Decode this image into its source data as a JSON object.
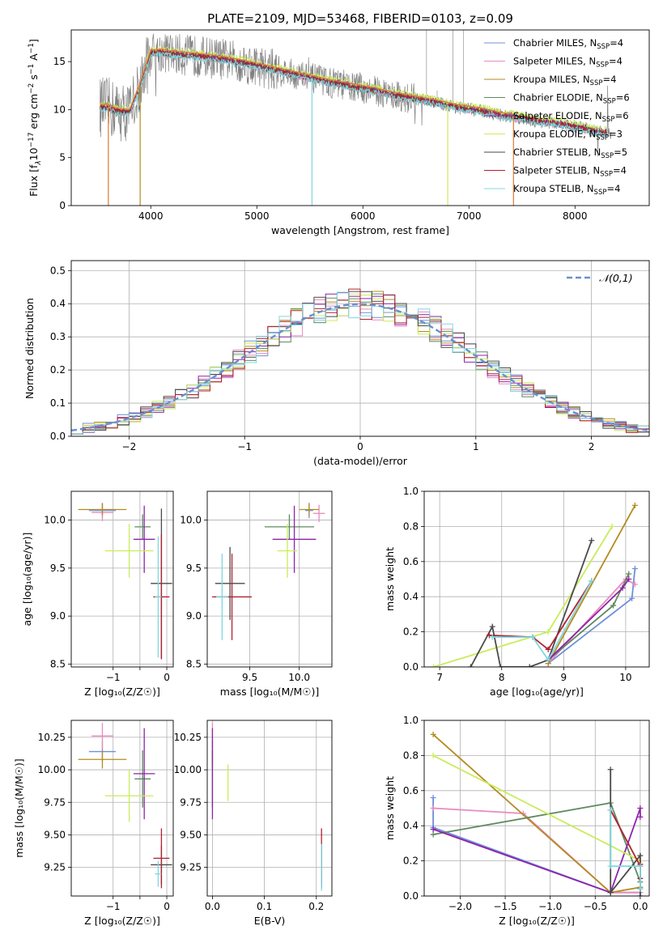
{
  "figure": {
    "title": "PLATE=2109, MJD=53468, FIBERID=0103, z=0.09"
  },
  "colors": {
    "Chabrier MILES": "#6f8fd8",
    "Salpeter MILES": "#e88ac0",
    "Kroupa MILES": "#b58b1f",
    "Chabrier ELODIE": "#5f8a5f",
    "Salpeter ELODIE": "#8e24aa",
    "Kroupa ELODIE": "#c9ec5a",
    "Chabrier STELIB": "#4a4a4a",
    "Salpeter STELIB": "#b22030",
    "Kroupa STELIB": "#7fd8e0",
    "data": "#808080",
    "orange": "#e07830",
    "normal": "#6a8fd0"
  },
  "chart_data": [
    {
      "id": "spectrum",
      "type": "line",
      "title": "PLATE=2109, MJD=53468, FIBERID=0103, z=0.09",
      "xlabel": "wavelength [Angstrom, rest frame]",
      "ylabel_parts": [
        "Flux [f",
        "λ",
        "10",
        "−17",
        " erg cm",
        "−2",
        " s",
        "−1",
        " A",
        "−1",
        "]"
      ],
      "xlim": [
        3250,
        8700
      ],
      "ylim": [
        0,
        18.3
      ],
      "xticks": [
        4000,
        5000,
        6000,
        7000,
        8000
      ],
      "yticks": [
        0,
        5,
        10,
        15
      ],
      "grid": false,
      "legend_position": "upper-right",
      "legend": [
        {
          "base": "Chabrier MILES, N",
          "sub": "SSP",
          "tail": "=4",
          "color": "#6f8fd8"
        },
        {
          "base": "Salpeter MILES, N",
          "sub": "SSP",
          "tail": "=4",
          "color": "#e88ac0"
        },
        {
          "base": "Kroupa MILES, N",
          "sub": "SSP",
          "tail": "=4",
          "color": "#b58b1f"
        },
        {
          "base": "Chabrier ELODIE, N",
          "sub": "SSP",
          "tail": "=6",
          "color": "#5f8a5f"
        },
        {
          "base": "Salpeter ELODIE, N",
          "sub": "SSP",
          "tail": "=6",
          "color": "#8e24aa"
        },
        {
          "base": "Kroupa ELODIE, N",
          "sub": "SSP",
          "tail": "=3",
          "color": "#c9ec5a"
        },
        {
          "base": "Chabrier STELIB, N",
          "sub": "SSP",
          "tail": "=5",
          "color": "#4a4a4a"
        },
        {
          "base": "Salpeter STELIB, N",
          "sub": "SSP",
          "tail": "=4",
          "color": "#b22030"
        },
        {
          "base": "Kroupa STELIB, N",
          "sub": "SSP",
          "tail": "=4",
          "color": "#7fd8e0"
        }
      ],
      "continuum": {
        "x": [
          3500,
          3600,
          3700,
          3800,
          3900,
          4000,
          4100,
          4200,
          4300,
          4400,
          4500,
          4700,
          4900,
          5100,
          5300,
          5500,
          5700,
          5900,
          6100,
          6300,
          6500,
          6700,
          6900,
          7100,
          7300,
          7500,
          7700,
          7900,
          8100,
          8300
        ],
        "y": [
          10.3,
          10.2,
          9.8,
          9.7,
          12.5,
          15.9,
          16.0,
          15.8,
          15.7,
          15.6,
          15.5,
          15.2,
          14.8,
          14.3,
          13.8,
          13.3,
          12.8,
          12.4,
          12.0,
          11.5,
          11.1,
          10.7,
          10.2,
          9.9,
          9.4,
          9.1,
          8.7,
          8.4,
          8.0,
          7.5
        ]
      }
    },
    {
      "id": "residuals",
      "type": "histogram",
      "xlabel": "(data-model)/error",
      "ylabel": "Normed distribution",
      "xlim": [
        -2.5,
        2.5
      ],
      "ylim": [
        0,
        0.53
      ],
      "xticks": [
        -2,
        -1,
        0,
        1,
        2
      ],
      "yticks": [
        0.0,
        0.1,
        0.2,
        0.3,
        0.4,
        0.5
      ],
      "grid": true,
      "legend": [
        "𝒩(0,1)"
      ],
      "legend_position": "upper-right",
      "bin_width": 0.1
    },
    {
      "id": "age-vs-Z",
      "type": "errorbar",
      "xlabel": "Z [log₁₀(Z/Z☉)]",
      "ylabel": "age  [log₁₀(age/yr)]",
      "xlim": [
        -1.78,
        0.12
      ],
      "ylim": [
        8.47,
        10.3
      ],
      "xticks": [
        -1,
        -0.5,
        0
      ],
      "xtick_labels": [
        "−1",
        "",
        "0"
      ],
      "yticks": [
        8.5,
        9.0,
        9.5,
        10.0
      ],
      "grid": true,
      "points": [
        {
          "model": "Chabrier MILES",
          "x": -1.2,
          "xerr": 0.25,
          "y": 10.1,
          "yerr": 0.08
        },
        {
          "model": "Salpeter MILES",
          "x": -1.2,
          "xerr": 0.2,
          "y": 10.08,
          "yerr": 0.09
        },
        {
          "model": "Kroupa MILES",
          "x": -1.2,
          "xerr": 0.45,
          "y": 10.11,
          "yerr": 0.06
        },
        {
          "model": "Chabrier ELODIE",
          "x": -0.45,
          "xerr": 0.15,
          "y": 9.93,
          "yerr": 0.13
        },
        {
          "model": "Salpeter ELODIE",
          "x": -0.42,
          "xerr": 0.2,
          "y": 9.8,
          "yerr": 0.35
        },
        {
          "model": "Kroupa ELODIE",
          "x": -0.7,
          "xerr": 0.45,
          "y": 9.68,
          "yerr": 0.28
        },
        {
          "model": "Chabrier STELIB",
          "x": -0.1,
          "xerr": 0.2,
          "y": 9.34,
          "yerr": 0.78
        },
        {
          "model": "Salpeter STELIB",
          "x": -0.1,
          "xerr": 0.15,
          "y": 9.2,
          "yerr": 0.65
        },
        {
          "model": "Kroupa STELIB",
          "x": -0.16,
          "xerr": 0.06,
          "y": 9.2,
          "yerr": 0.63
        }
      ]
    },
    {
      "id": "age-vs-mass",
      "type": "errorbar",
      "xlabel": "mass [log₁₀(M/M☉)]",
      "ylabel": "",
      "xlim": [
        9.07,
        10.33
      ],
      "ylim": [
        8.47,
        10.3
      ],
      "xticks": [
        9.5,
        10.0
      ],
      "yticks": [
        8.5,
        9.0,
        9.5,
        10.0
      ],
      "grid": true,
      "points": [
        {
          "model": "Chabrier MILES",
          "x": 10.1,
          "xerr": 0.04,
          "y": 10.1,
          "yerr": 0.08
        },
        {
          "model": "Salpeter MILES",
          "x": 10.2,
          "xerr": 0.06,
          "y": 10.07,
          "yerr": 0.09
        },
        {
          "model": "Kroupa MILES",
          "x": 10.1,
          "xerr": 0.1,
          "y": 10.11,
          "yerr": 0.06
        },
        {
          "model": "Chabrier ELODIE",
          "x": 9.9,
          "xerr": 0.25,
          "y": 9.93,
          "yerr": 0.13
        },
        {
          "model": "Salpeter ELODIE",
          "x": 9.95,
          "xerr": 0.22,
          "y": 9.8,
          "yerr": 0.35
        },
        {
          "model": "Kroupa ELODIE",
          "x": 9.88,
          "xerr": 0.1,
          "y": 9.68,
          "yerr": 0.28
        },
        {
          "model": "Chabrier STELIB",
          "x": 9.3,
          "xerr": 0.15,
          "y": 9.34,
          "yerr": 0.38
        },
        {
          "model": "Salpeter STELIB",
          "x": 9.32,
          "xerr": 0.2,
          "y": 9.2,
          "yerr": 0.45
        },
        {
          "model": "Kroupa STELIB",
          "x": 9.22,
          "xerr": 0.06,
          "y": 9.2,
          "yerr": 0.45
        }
      ]
    },
    {
      "id": "mass-weight-vs-age",
      "type": "line",
      "xlabel": "age  [log₁₀(age/yr)]",
      "ylabel": "mass weight",
      "xlim": [
        6.75,
        10.38
      ],
      "ylim": [
        0,
        1.0
      ],
      "xticks": [
        7,
        8,
        9,
        10
      ],
      "yticks": [
        0.0,
        0.2,
        0.4,
        0.6,
        0.8,
        1.0
      ],
      "grid": true,
      "series": [
        {
          "model": "Chabrier MILES",
          "x": [
            8.75,
            10.1,
            10.15
          ],
          "y": [
            0.02,
            0.39,
            0.56
          ]
        },
        {
          "model": "Salpeter MILES",
          "x": [
            8.75,
            10.0,
            10.15
          ],
          "y": [
            0.02,
            0.5,
            0.47
          ]
        },
        {
          "model": "Kroupa MILES",
          "x": [
            8.75,
            10.15
          ],
          "y": [
            0.02,
            0.92
          ]
        },
        {
          "model": "Chabrier ELODIE",
          "x": [
            8.75,
            9.8,
            10.05
          ],
          "y": [
            0.04,
            0.35,
            0.53
          ]
        },
        {
          "model": "Salpeter ELODIE",
          "x": [
            8.75,
            9.95,
            10.05
          ],
          "y": [
            0.04,
            0.45,
            0.5
          ]
        },
        {
          "model": "Kroupa ELODIE",
          "x": [
            6.9,
            8.75,
            9.78
          ],
          "y": [
            0.0,
            0.2,
            0.8
          ]
        },
        {
          "model": "Chabrier STELIB",
          "x": [
            7.5,
            7.85,
            7.98,
            8.45,
            8.75,
            9.45
          ],
          "y": [
            0.0,
            0.23,
            0.0,
            0.0,
            0.04,
            0.72
          ]
        },
        {
          "model": "Salpeter STELIB",
          "x": [
            7.8,
            8.5,
            8.75,
            9.45
          ],
          "y": [
            0.18,
            0.17,
            0.1,
            0.49
          ]
        },
        {
          "model": "Kroupa STELIB",
          "x": [
            7.85,
            8.5,
            8.75,
            9.45
          ],
          "y": [
            0.17,
            0.17,
            0.04,
            0.49
          ]
        }
      ]
    },
    {
      "id": "mass-vs-Z",
      "type": "errorbar",
      "xlabel": "Z [log₁₀(Z/Z☉)]",
      "ylabel": "mass [log₁₀(M/M☉)]",
      "xlim": [
        -1.78,
        0.12
      ],
      "ylim": [
        9.03,
        10.38
      ],
      "xticks": [
        -1,
        -0.5,
        0
      ],
      "xtick_labels": [
        "−1",
        "",
        "0"
      ],
      "yticks": [
        9.25,
        9.5,
        9.75,
        10.0,
        10.25
      ],
      "grid": true,
      "points": [
        {
          "model": "Chabrier MILES",
          "x": -1.2,
          "xerr": 0.25,
          "y": 10.14,
          "yerr": 0.08
        },
        {
          "model": "Salpeter MILES",
          "x": -1.2,
          "xerr": 0.2,
          "y": 10.26,
          "yerr": 0.1
        },
        {
          "model": "Kroupa MILES",
          "x": -1.2,
          "xerr": 0.45,
          "y": 10.08,
          "yerr": 0.07
        },
        {
          "model": "Chabrier ELODIE",
          "x": -0.45,
          "xerr": 0.15,
          "y": 9.93,
          "yerr": 0.22
        },
        {
          "model": "Salpeter ELODIE",
          "x": -0.42,
          "xerr": 0.2,
          "y": 9.97,
          "yerr": 0.35
        },
        {
          "model": "Kroupa ELODIE",
          "x": -0.7,
          "xerr": 0.45,
          "y": 9.8,
          "yerr": 0.2
        },
        {
          "model": "Chabrier STELIB",
          "x": -0.1,
          "xerr": 0.2,
          "y": 9.27,
          "yerr": 0.15
        },
        {
          "model": "Salpeter STELIB",
          "x": -0.1,
          "xerr": 0.15,
          "y": 9.32,
          "yerr": 0.23
        },
        {
          "model": "Kroupa STELIB",
          "x": -0.16,
          "xerr": 0.06,
          "y": 9.2,
          "yerr": 0.1
        }
      ]
    },
    {
      "id": "mass-vs-ebv",
      "type": "errorbar",
      "xlabel": "E(B-V)",
      "ylabel": "",
      "xlim": [
        -0.01,
        0.23
      ],
      "ylim": [
        9.03,
        10.38
      ],
      "xticks": [
        0.0,
        0.1,
        0.2
      ],
      "yticks": [
        9.25,
        9.5,
        9.75,
        10.0,
        10.25
      ],
      "grid": true,
      "points": [
        {
          "model": "Chabrier MILES",
          "x": 0.0,
          "xerr": 0.0,
          "y": 10.14,
          "yerr": 0.08
        },
        {
          "model": "Salpeter MILES",
          "x": 0.0,
          "xerr": 0.0,
          "y": 10.26,
          "yerr": 0.1
        },
        {
          "model": "Kroupa MILES",
          "x": 0.0,
          "xerr": 0.0,
          "y": 10.08,
          "yerr": 0.07
        },
        {
          "model": "Chabrier ELODIE",
          "x": 0.0,
          "xerr": 0.0,
          "y": 9.93,
          "yerr": 0.22
        },
        {
          "model": "Salpeter ELODIE",
          "x": 0.0,
          "xerr": 0.0,
          "y": 9.97,
          "yerr": 0.35
        },
        {
          "model": "Kroupa ELODIE",
          "x": 0.03,
          "xerr": 0.0,
          "y": 9.9,
          "yerr": 0.14
        },
        {
          "model": "Chabrier STELIB",
          "x": 0.21,
          "xerr": 0.0,
          "y": 9.27,
          "yerr": 0.15
        },
        {
          "model": "Salpeter STELIB",
          "x": 0.21,
          "xerr": 0.0,
          "y": 9.32,
          "yerr": 0.23
        },
        {
          "model": "Kroupa STELIB",
          "x": 0.21,
          "xerr": 0.0,
          "y": 9.25,
          "yerr": 0.18
        }
      ]
    },
    {
      "id": "mass-weight-vs-Z",
      "type": "line",
      "xlabel": "Z [log₁₀(Z/Z☉)]",
      "ylabel": "mass weight",
      "xlim": [
        -2.4,
        0.1
      ],
      "ylim": [
        0,
        1.0
      ],
      "xticks": [
        -2.0,
        -1.5,
        -1.0,
        -0.5,
        0.0
      ],
      "yticks": [
        0.0,
        0.2,
        0.4,
        0.6,
        0.8,
        1.0
      ],
      "grid": true,
      "series": [
        {
          "model": "Chabrier MILES",
          "x": [
            -2.3,
            -2.3,
            -0.33,
            0.0
          ],
          "y": [
            0.56,
            0.39,
            0.02,
            0.02
          ]
        },
        {
          "model": "Salpeter MILES",
          "x": [
            -2.3,
            -1.3,
            -0.33,
            0.0
          ],
          "y": [
            0.5,
            0.47,
            0.02,
            0.02
          ]
        },
        {
          "model": "Kroupa MILES",
          "x": [
            -2.3,
            -0.33,
            0.0,
            0.0
          ],
          "y": [
            0.92,
            0.02,
            0.05,
            0.05
          ]
        },
        {
          "model": "Chabrier ELODIE",
          "x": [
            -2.3,
            -0.33,
            0.0
          ],
          "y": [
            0.35,
            0.53,
            0.08
          ]
        },
        {
          "model": "Salpeter ELODIE",
          "x": [
            -2.3,
            -0.33,
            0.0,
            0.0
          ],
          "y": [
            0.38,
            0.02,
            0.5,
            0.45
          ]
        },
        {
          "model": "Kroupa ELODIE",
          "x": [
            -2.3,
            0.0
          ],
          "y": [
            0.8,
            0.2
          ]
        },
        {
          "model": "Chabrier STELIB",
          "x": [
            -0.33,
            -0.33,
            0.0,
            0.0,
            0.0
          ],
          "y": [
            0.72,
            0.02,
            0.23,
            0.04,
            0.0
          ]
        },
        {
          "model": "Salpeter STELIB",
          "x": [
            -0.33,
            0.0,
            0.0,
            0.0
          ],
          "y": [
            0.49,
            0.17,
            0.1,
            0.18
          ]
        },
        {
          "model": "Kroupa STELIB",
          "x": [
            -0.33,
            -0.33,
            0.0,
            0.0
          ],
          "y": [
            0.49,
            0.17,
            0.17,
            0.04
          ]
        }
      ]
    }
  ]
}
